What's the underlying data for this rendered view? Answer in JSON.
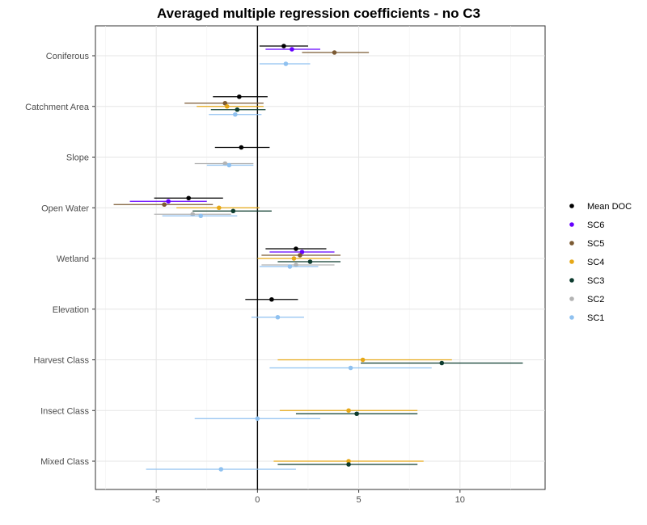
{
  "chart_data": {
    "type": "forest",
    "title": "Averaged multiple regression coefficients - no C3",
    "xlabel": "",
    "ylabel": "",
    "xlim": [
      -8,
      14.2
    ],
    "x_ticks": [
      -5,
      0,
      5,
      10
    ],
    "x_tick_labels": [
      "-5",
      "0",
      "5",
      "10"
    ],
    "reference_line": 0,
    "grid": true,
    "legend_position": "right",
    "categories": [
      "Coniferous",
      "Catchment Area",
      "Slope",
      "Open Water",
      "Wetland",
      "Elevation",
      "Harvest Class",
      "Insect Class",
      "Mixed Class"
    ],
    "series": [
      {
        "name": "Mean DOC",
        "color": "#000000",
        "points": [
          {
            "category": "Coniferous",
            "estimate": 1.3,
            "low": 0.1,
            "high": 2.5
          },
          {
            "category": "Catchment Area",
            "estimate": -0.9,
            "low": -2.2,
            "high": 0.5
          },
          {
            "category": "Slope",
            "estimate": -0.8,
            "low": -2.1,
            "high": 0.6
          },
          {
            "category": "Open Water",
            "estimate": -3.4,
            "low": -5.1,
            "high": -1.7
          },
          {
            "category": "Wetland",
            "estimate": 1.9,
            "low": 0.4,
            "high": 3.4
          },
          {
            "category": "Elevation",
            "estimate": 0.7,
            "low": -0.6,
            "high": 2.0
          }
        ]
      },
      {
        "name": "SC6",
        "color": "#6600ff",
        "points": [
          {
            "category": "Coniferous",
            "estimate": 1.7,
            "low": 0.4,
            "high": 3.1
          },
          {
            "category": "Open Water",
            "estimate": -4.4,
            "low": -6.3,
            "high": -2.5
          },
          {
            "category": "Wetland",
            "estimate": 2.2,
            "low": 0.6,
            "high": 3.8
          }
        ]
      },
      {
        "name": "SC5",
        "color": "#7b5a33",
        "points": [
          {
            "category": "Coniferous",
            "estimate": 3.8,
            "low": 2.2,
            "high": 5.5
          },
          {
            "category": "Catchment Area",
            "estimate": -1.6,
            "low": -3.6,
            "high": 0.3
          },
          {
            "category": "Open Water",
            "estimate": -4.6,
            "low": -7.1,
            "high": -2.2
          },
          {
            "category": "Wetland",
            "estimate": 2.1,
            "low": 0.2,
            "high": 4.1
          }
        ]
      },
      {
        "name": "SC4",
        "color": "#e6a817",
        "points": [
          {
            "category": "Catchment Area",
            "estimate": -1.5,
            "low": -3.0,
            "high": 0.3
          },
          {
            "category": "Open Water",
            "estimate": -1.9,
            "low": -4.0,
            "high": 0.1
          },
          {
            "category": "Wetland",
            "estimate": 1.8,
            "low": 0.0,
            "high": 3.6
          },
          {
            "category": "Harvest Class",
            "estimate": 5.2,
            "low": 1.0,
            "high": 9.6
          },
          {
            "category": "Insect Class",
            "estimate": 4.5,
            "low": 1.1,
            "high": 7.9
          },
          {
            "category": "Mixed Class",
            "estimate": 4.5,
            "low": 0.8,
            "high": 8.2
          }
        ]
      },
      {
        "name": "SC3",
        "color": "#0c3b2e",
        "points": [
          {
            "category": "Catchment Area",
            "estimate": -1.0,
            "low": -2.3,
            "high": 0.4
          },
          {
            "category": "Open Water",
            "estimate": -1.2,
            "low": -3.2,
            "high": 0.7
          },
          {
            "category": "Wetland",
            "estimate": 2.6,
            "low": 1.0,
            "high": 4.1
          },
          {
            "category": "Harvest Class",
            "estimate": 9.1,
            "low": 5.1,
            "high": 13.1
          },
          {
            "category": "Insect Class",
            "estimate": 4.9,
            "low": 1.9,
            "high": 7.9
          },
          {
            "category": "Mixed Class",
            "estimate": 4.5,
            "low": 1.0,
            "high": 7.9
          }
        ]
      },
      {
        "name": "SC2",
        "color": "#b3b3b3",
        "points": [
          {
            "category": "Slope",
            "estimate": -1.6,
            "low": -3.1,
            "high": -0.2
          },
          {
            "category": "Open Water",
            "estimate": -3.2,
            "low": -5.1,
            "high": -1.3
          },
          {
            "category": "Wetland",
            "estimate": 1.9,
            "low": 0.2,
            "high": 3.8
          }
        ]
      },
      {
        "name": "SC1",
        "color": "#8fc1f0",
        "points": [
          {
            "category": "Coniferous",
            "estimate": 1.4,
            "low": 0.1,
            "high": 2.6
          },
          {
            "category": "Catchment Area",
            "estimate": -1.1,
            "low": -2.4,
            "high": 0.2
          },
          {
            "category": "Slope",
            "estimate": -1.4,
            "low": -2.5,
            "high": -0.2
          },
          {
            "category": "Open Water",
            "estimate": -2.8,
            "low": -4.7,
            "high": -1.0
          },
          {
            "category": "Wetland",
            "estimate": 1.6,
            "low": 0.1,
            "high": 3.0
          },
          {
            "category": "Elevation",
            "estimate": 1.0,
            "low": -0.3,
            "high": 2.3
          },
          {
            "category": "Harvest Class",
            "estimate": 4.6,
            "low": 0.6,
            "high": 8.6
          },
          {
            "category": "Insect Class",
            "estimate": 0.0,
            "low": -3.1,
            "high": 3.1
          },
          {
            "category": "Mixed Class",
            "estimate": -1.8,
            "low": -5.5,
            "high": 1.9
          }
        ]
      }
    ]
  }
}
